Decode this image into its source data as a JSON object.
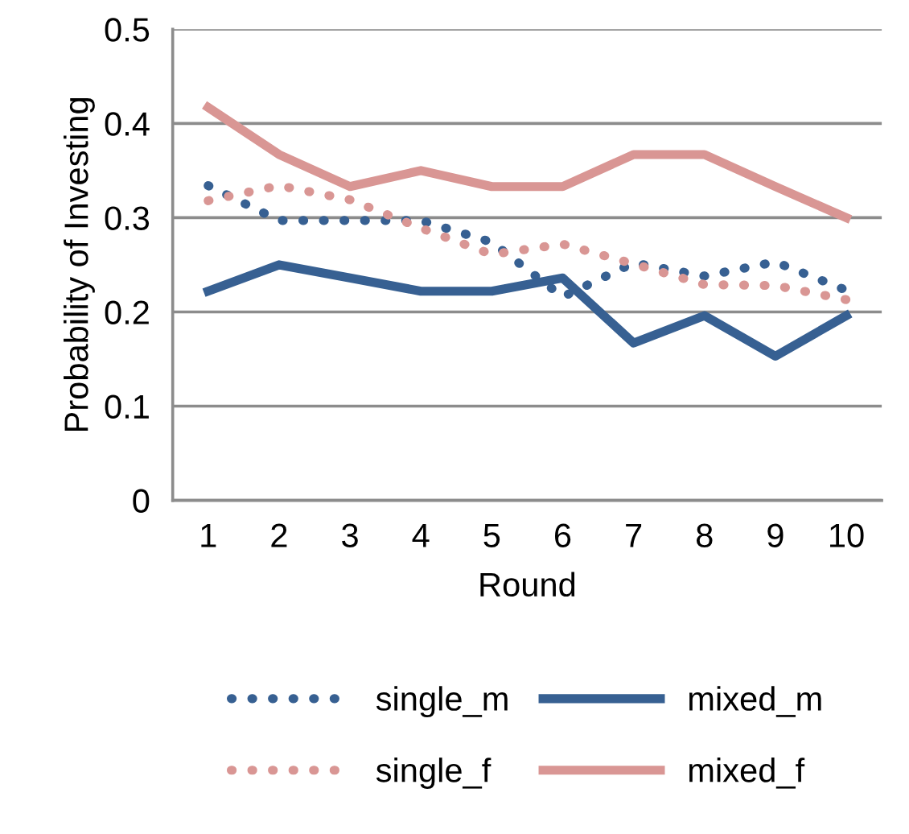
{
  "chart_data": {
    "type": "line",
    "xlabel": "Round",
    "ylabel": "Probability of Investing",
    "categories": [
      "1",
      "2",
      "3",
      "4",
      "5",
      "6",
      "7",
      "8",
      "9",
      "10"
    ],
    "ylim": [
      0,
      0.5
    ],
    "yticks": [
      0,
      0.1,
      0.2,
      0.3,
      0.4,
      0.5
    ],
    "grid": "y",
    "legend": "bottom",
    "marker": "none",
    "series": [
      {
        "name": "single_m",
        "color": "#376092",
        "line_style": "dotted",
        "values": [
          0.334,
          0.297,
          0.297,
          0.297,
          0.274,
          0.216,
          0.252,
          0.238,
          0.253,
          0.223
        ]
      },
      {
        "name": "single_f",
        "color": "#d99694",
        "line_style": "dotted",
        "values": [
          0.318,
          0.334,
          0.319,
          0.289,
          0.261,
          0.272,
          0.251,
          0.229,
          0.228,
          0.213
        ]
      },
      {
        "name": "mixed_m",
        "color": "#376092",
        "line_style": "solid",
        "values": [
          0.222,
          0.25,
          0.236,
          0.222,
          0.222,
          0.236,
          0.167,
          0.196,
          0.153,
          0.196
        ]
      },
      {
        "name": "mixed_f",
        "color": "#d99694",
        "line_style": "solid",
        "values": [
          0.417,
          0.367,
          0.333,
          0.35,
          0.333,
          0.333,
          0.367,
          0.367,
          0.333,
          0.3
        ]
      }
    ]
  }
}
